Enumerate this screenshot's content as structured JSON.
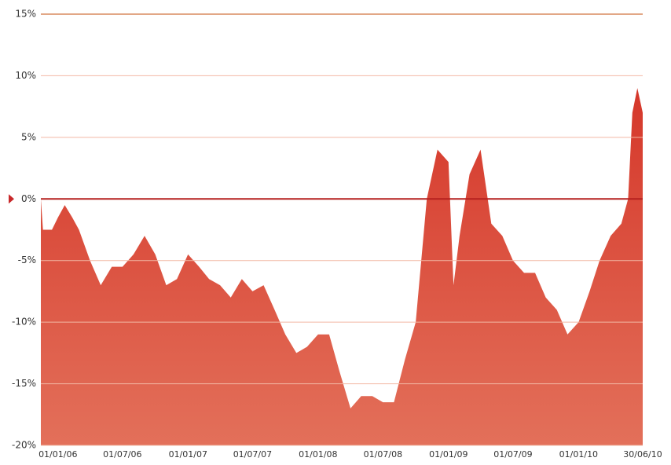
{
  "chart_data": {
    "type": "area",
    "x": [
      "2005-11-14",
      "2005-11-20",
      "2005-12-15",
      "2006-01-01",
      "2006-01-20",
      "2006-02-10",
      "2006-03-01",
      "2006-04-01",
      "2006-05-01",
      "2006-06-01",
      "2006-07-01",
      "2006-08-01",
      "2006-09-01",
      "2006-10-01",
      "2006-11-01",
      "2006-12-01",
      "2007-01-01",
      "2007-02-01",
      "2007-03-01",
      "2007-04-01",
      "2007-05-01",
      "2007-06-01",
      "2007-07-01",
      "2007-08-01",
      "2007-09-01",
      "2007-10-01",
      "2007-11-01",
      "2007-12-01",
      "2008-01-01",
      "2008-02-01",
      "2008-03-01",
      "2008-04-01",
      "2008-05-01",
      "2008-06-01",
      "2008-07-01",
      "2008-08-01",
      "2008-09-01",
      "2008-10-01",
      "2008-11-01",
      "2008-12-01",
      "2009-01-01",
      "2009-01-15",
      "2009-02-01",
      "2009-03-01",
      "2009-04-01",
      "2009-05-01",
      "2009-06-01",
      "2009-07-01",
      "2009-08-01",
      "2009-09-01",
      "2009-10-01",
      "2009-11-01",
      "2009-12-01",
      "2010-01-01",
      "2010-02-01",
      "2010-03-01",
      "2010-04-01",
      "2010-05-01",
      "2010-05-20",
      "2010-06-01",
      "2010-06-15",
      "2010-06-30"
    ],
    "values": [
      0,
      -2.5,
      -2.5,
      -1.5,
      -0.5,
      -1.5,
      -2.5,
      -5,
      -7,
      -5.5,
      -5.5,
      -4.5,
      -3,
      -4.5,
      -7,
      -6.5,
      -4.5,
      -5.5,
      -6.5,
      -7,
      -8,
      -6.5,
      -7.5,
      -7,
      -9,
      -11,
      -12.5,
      -12,
      -11,
      -11,
      -14,
      -17,
      -16,
      -16,
      -16.5,
      -16.5,
      -13,
      -10,
      0,
      4,
      3,
      -7,
      -3,
      2,
      4,
      -2,
      -3,
      -5,
      -6,
      -6,
      -8,
      -9,
      -11,
      -10,
      -7.5,
      -5,
      -3,
      -2,
      0,
      7,
      9,
      7
    ],
    "color": "#d73a2b",
    "xlim": [
      "2005-11-14",
      "2010-06-30"
    ],
    "xticks": [
      {
        "value": "2006-01-01",
        "label": "01/01/06"
      },
      {
        "value": "2006-07-01",
        "label": "01/07/06"
      },
      {
        "value": "2007-01-01",
        "label": "01/01/07"
      },
      {
        "value": "2007-07-01",
        "label": "01/07/07"
      },
      {
        "value": "2008-01-01",
        "label": "01/01/08"
      },
      {
        "value": "2008-07-01",
        "label": "01/07/08"
      },
      {
        "value": "2009-01-01",
        "label": "01/01/09"
      },
      {
        "value": "2009-07-01",
        "label": "01/07/09"
      },
      {
        "value": "2010-01-01",
        "label": "01/01/10"
      },
      {
        "value": "2010-06-30",
        "label": "30/06/10"
      }
    ],
    "ylim": [
      -20,
      15
    ],
    "yticks": [
      {
        "value": -20,
        "label": "-20%"
      },
      {
        "value": -15,
        "label": "-15%"
      },
      {
        "value": -10,
        "label": "-10%"
      },
      {
        "value": -5,
        "label": "-5%"
      },
      {
        "value": 0,
        "label": "0%"
      },
      {
        "value": 5,
        "label": "5%"
      },
      {
        "value": 10,
        "label": "10%"
      },
      {
        "value": 15,
        "label": "15%"
      }
    ],
    "grid": true
  }
}
